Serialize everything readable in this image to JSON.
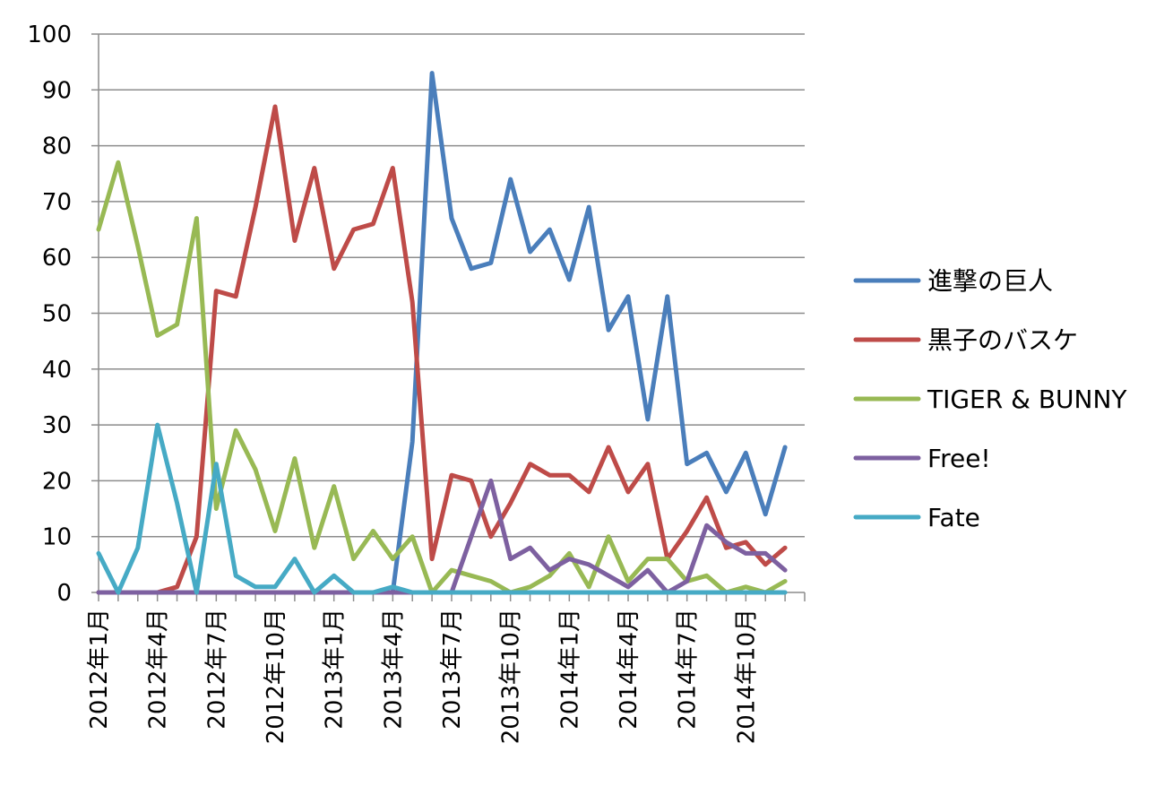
{
  "chart_data": {
    "type": "line",
    "title": "",
    "xlabel": "",
    "ylabel": "",
    "ylim": [
      0,
      100
    ],
    "y_ticks": [
      "0",
      "10",
      "20",
      "30",
      "40",
      "50",
      "60",
      "70",
      "80",
      "90",
      "100"
    ],
    "grid": "horizontal",
    "legend_position": "right",
    "x_tick_labels": [
      "2012年1月",
      "2012年4月",
      "2012年7月",
      "2012年10月",
      "2013年1月",
      "2013年4月",
      "2013年7月",
      "2013年10月",
      "2014年1月",
      "2014年4月",
      "2014年7月",
      "2014年10月"
    ],
    "x": [
      "2012年1月",
      "2012年2月",
      "2012年3月",
      "2012年4月",
      "2012年5月",
      "2012年6月",
      "2012年7月",
      "2012年8月",
      "2012年9月",
      "2012年10月",
      "2012年11月",
      "2012年12月",
      "2013年1月",
      "2013年2月",
      "2013年3月",
      "2013年4月",
      "2013年5月",
      "2013年6月",
      "2013年7月",
      "2013年8月",
      "2013年9月",
      "2013年10月",
      "2013年11月",
      "2013年12月",
      "2014年1月",
      "2014年2月",
      "2014年3月",
      "2014年4月",
      "2014年5月",
      "2014年6月",
      "2014年7月",
      "2014年8月",
      "2014年9月",
      "2014年10月",
      "2014年11月",
      "2014年12月",
      "2015年1月"
    ],
    "series": [
      {
        "name": "進撃の巨人",
        "color": "#4a7ebb",
        "values": [
          0,
          0,
          0,
          0,
          0,
          0,
          0,
          0,
          0,
          0,
          0,
          0,
          0,
          0,
          0,
          0,
          27,
          93,
          67,
          58,
          59,
          74,
          61,
          65,
          56,
          69,
          47,
          53,
          31,
          53,
          23,
          25,
          18,
          25,
          14,
          26,
          null
        ]
      },
      {
        "name": "黒子のバスケ",
        "color": "#be4b48",
        "values": [
          0,
          0,
          0,
          0,
          1,
          10,
          54,
          53,
          69,
          87,
          63,
          76,
          58,
          65,
          66,
          76,
          52,
          6,
          21,
          20,
          10,
          16,
          23,
          21,
          21,
          18,
          26,
          18,
          23,
          6,
          11,
          17,
          8,
          9,
          5,
          8,
          null
        ]
      },
      {
        "name": "TIGER & BUNNY",
        "color": "#98b954",
        "values": [
          65,
          77,
          62,
          46,
          48,
          67,
          15,
          29,
          22,
          11,
          24,
          8,
          19,
          6,
          11,
          6,
          10,
          0,
          4,
          3,
          2,
          0,
          1,
          3,
          7,
          1,
          10,
          2,
          6,
          6,
          2,
          3,
          0,
          1,
          0,
          2,
          null
        ]
      },
      {
        "name": "Free!",
        "color": "#7d60a0",
        "values": [
          0,
          0,
          0,
          0,
          0,
          0,
          0,
          0,
          0,
          0,
          0,
          0,
          0,
          0,
          0,
          0,
          0,
          0,
          0,
          10,
          20,
          6,
          8,
          4,
          6,
          5,
          3,
          1,
          4,
          0,
          2,
          12,
          9,
          7,
          7,
          4,
          null
        ]
      },
      {
        "name": "Fate",
        "color": "#46aac5",
        "values": [
          7,
          0,
          8,
          30,
          16,
          0,
          23,
          3,
          1,
          1,
          6,
          0,
          3,
          0,
          0,
          1,
          0,
          0,
          0,
          0,
          0,
          0,
          0,
          0,
          0,
          0,
          0,
          0,
          0,
          0,
          0,
          0,
          0,
          0,
          0,
          0,
          null
        ]
      }
    ]
  }
}
